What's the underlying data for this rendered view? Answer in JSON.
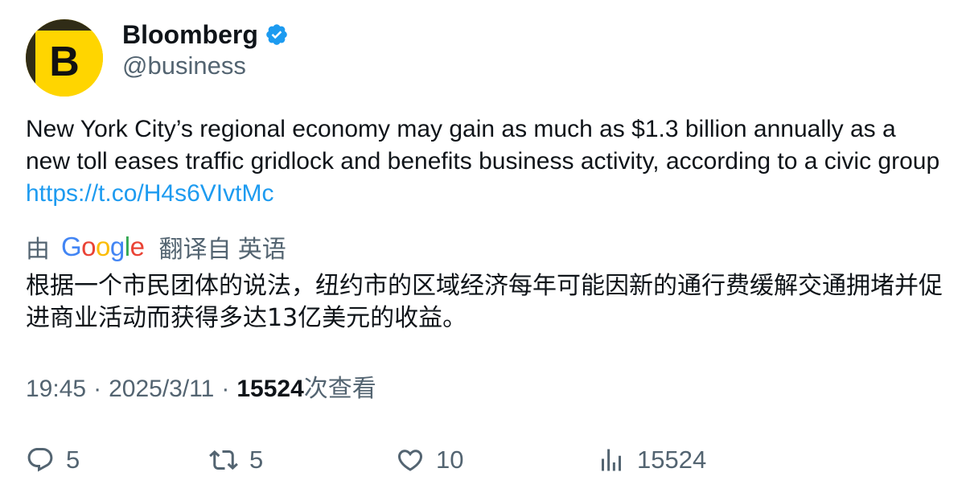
{
  "author": {
    "display_name": "Bloomberg",
    "handle": "@business",
    "avatar_letter": "B",
    "avatar_color": "#ffd500",
    "verified": true
  },
  "tweet": {
    "text": "New York City’s regional economy may gain as much as $1.3 billion annually as a new toll eases traffic gridlock and benefits business activity, according to a civic group ",
    "link": "https://t.co/H4s6VIvtMc"
  },
  "translation": {
    "prefix": "由",
    "provider_letters": [
      "G",
      "o",
      "o",
      "g",
      "l",
      "e"
    ],
    "suffix": "翻译自 英语",
    "text": "根据一个市民团体的说法，纽约市的区域经济每年可能因新的通行费缓解交通拥堵并促进商业活动而获得多达13亿美元的收益。"
  },
  "meta": {
    "time": "19:45",
    "separator": "·",
    "date": "2025/3/11",
    "views_count": "15524",
    "views_label": "次查看"
  },
  "actions": {
    "replies": "5",
    "reposts": "5",
    "likes": "10",
    "views": "15524"
  },
  "colors": {
    "link": "#1d9bf0",
    "secondary_text": "#536471",
    "primary_text": "#0f1419",
    "verified_badge": "#1d9bf0"
  },
  "icons": {
    "verified": "verified-badge-icon",
    "reply": "reply-icon",
    "repost": "repost-icon",
    "like": "heart-icon",
    "views": "analytics-icon"
  }
}
